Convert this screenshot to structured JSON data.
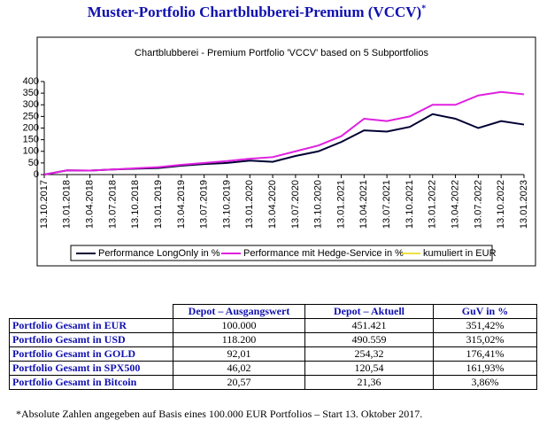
{
  "header": {
    "title": "Muster-Portfolio Chartblubberei-Premium (VCCV)",
    "mark": "*"
  },
  "chart_data": {
    "type": "line",
    "title": "Chartblubberei - Premium Portfolio 'VCCV' based on 5 Subportfolios",
    "categories": [
      "13.10.2017",
      "13.01.2018",
      "13.04.2018",
      "13.07.2018",
      "13.10.2018",
      "13.01.2019",
      "13.04.2019",
      "13.07.2019",
      "13.10.2019",
      "13.01.2020",
      "13.04.2020",
      "13.07.2020",
      "13.10.2020",
      "13.01.2021",
      "13.04.2021",
      "13.07.2021",
      "13.10.2021",
      "13.01.2022",
      "13.04.2022",
      "13.07.2022",
      "13.10.2022",
      "13.01.2023"
    ],
    "series": [
      {
        "name": "Performance LongOnly in %",
        "color": "#000033",
        "values": [
          0,
          18,
          17,
          22,
          25,
          28,
          38,
          45,
          50,
          60,
          55,
          80,
          100,
          140,
          190,
          185,
          205,
          260,
          240,
          200,
          230,
          215
        ]
      },
      {
        "name": "Performance mit Hedge-Service in %",
        "color": "#e020e0",
        "values": [
          0,
          18,
          17,
          22,
          27,
          32,
          42,
          50,
          58,
          68,
          75,
          100,
          125,
          165,
          240,
          230,
          250,
          300,
          300,
          340,
          355,
          345
        ]
      },
      {
        "name": "kumuliert in EUR",
        "color": "#f0e040"
      }
    ],
    "ylim": [
      0,
      400
    ],
    "yticks": [
      0,
      50,
      100,
      150,
      200,
      250,
      300,
      350,
      400
    ],
    "grid": false
  },
  "table": {
    "header": [
      "Depot – Ausgangswert",
      "Depot – Aktuell",
      "GuV in %"
    ],
    "rows": [
      [
        "Portfolio Gesamt in EUR",
        "100.000",
        "451.421",
        "351,42%"
      ],
      [
        "Portfolio Gesamt in USD",
        "118.200",
        "490.559",
        "315,02%"
      ],
      [
        "Portfolio Gesamt in GOLD",
        "92,01",
        "254,32",
        "176,41%"
      ],
      [
        "Portfolio Gesamt in SPX500",
        "46,02",
        "120,54",
        "161,93%"
      ],
      [
        "Portfolio Gesamt in Bitcoin",
        "20,57",
        "21,36",
        "3,86%"
      ]
    ]
  },
  "footnote": "*Absolute Zahlen angegeben auf Basis eines 100.000 EUR Portfolios – Start 13. Oktober 2017."
}
